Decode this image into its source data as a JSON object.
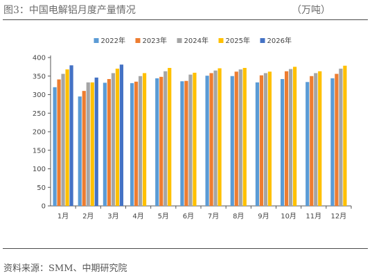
{
  "header": {
    "title": "图3：中国电解铝月度产量情况",
    "unit": "（万吨）"
  },
  "footer": {
    "source": "资料来源：SMM、中期研究院"
  },
  "chart_data": {
    "type": "bar",
    "title": "",
    "xlabel": "",
    "ylabel": "",
    "ylim": [
      0,
      400
    ],
    "yticks": [
      0,
      50,
      100,
      150,
      200,
      250,
      300,
      350,
      400
    ],
    "grid": false,
    "legend_position": "top",
    "categories": [
      "1月",
      "2月",
      "3月",
      "4月",
      "5月",
      "6月",
      "7月",
      "8月",
      "9月",
      "10月",
      "11月",
      "12月"
    ],
    "series": [
      {
        "name": "2022年",
        "color": "#5b9bd5",
        "values": [
          320,
          295,
          332,
          331,
          344,
          336,
          351,
          350,
          333,
          342,
          334,
          344
        ]
      },
      {
        "name": "2023年",
        "color": "#ed7d31",
        "values": [
          341,
          310,
          342,
          335,
          348,
          337,
          358,
          362,
          352,
          363,
          350,
          356
        ]
      },
      {
        "name": "2024年",
        "color": "#a5a5a5",
        "values": [
          356,
          333,
          358,
          350,
          363,
          354,
          365,
          368,
          358,
          369,
          358,
          370
        ]
      },
      {
        "name": "2025年",
        "color": "#ffc000",
        "values": [
          368,
          333,
          370,
          358,
          372,
          359,
          371,
          372,
          362,
          375,
          363,
          378
        ]
      },
      {
        "name": "2026年",
        "color": "#4472c4",
        "values": [
          379,
          346,
          381,
          null,
          null,
          null,
          null,
          null,
          null,
          null,
          null,
          null
        ]
      }
    ]
  }
}
